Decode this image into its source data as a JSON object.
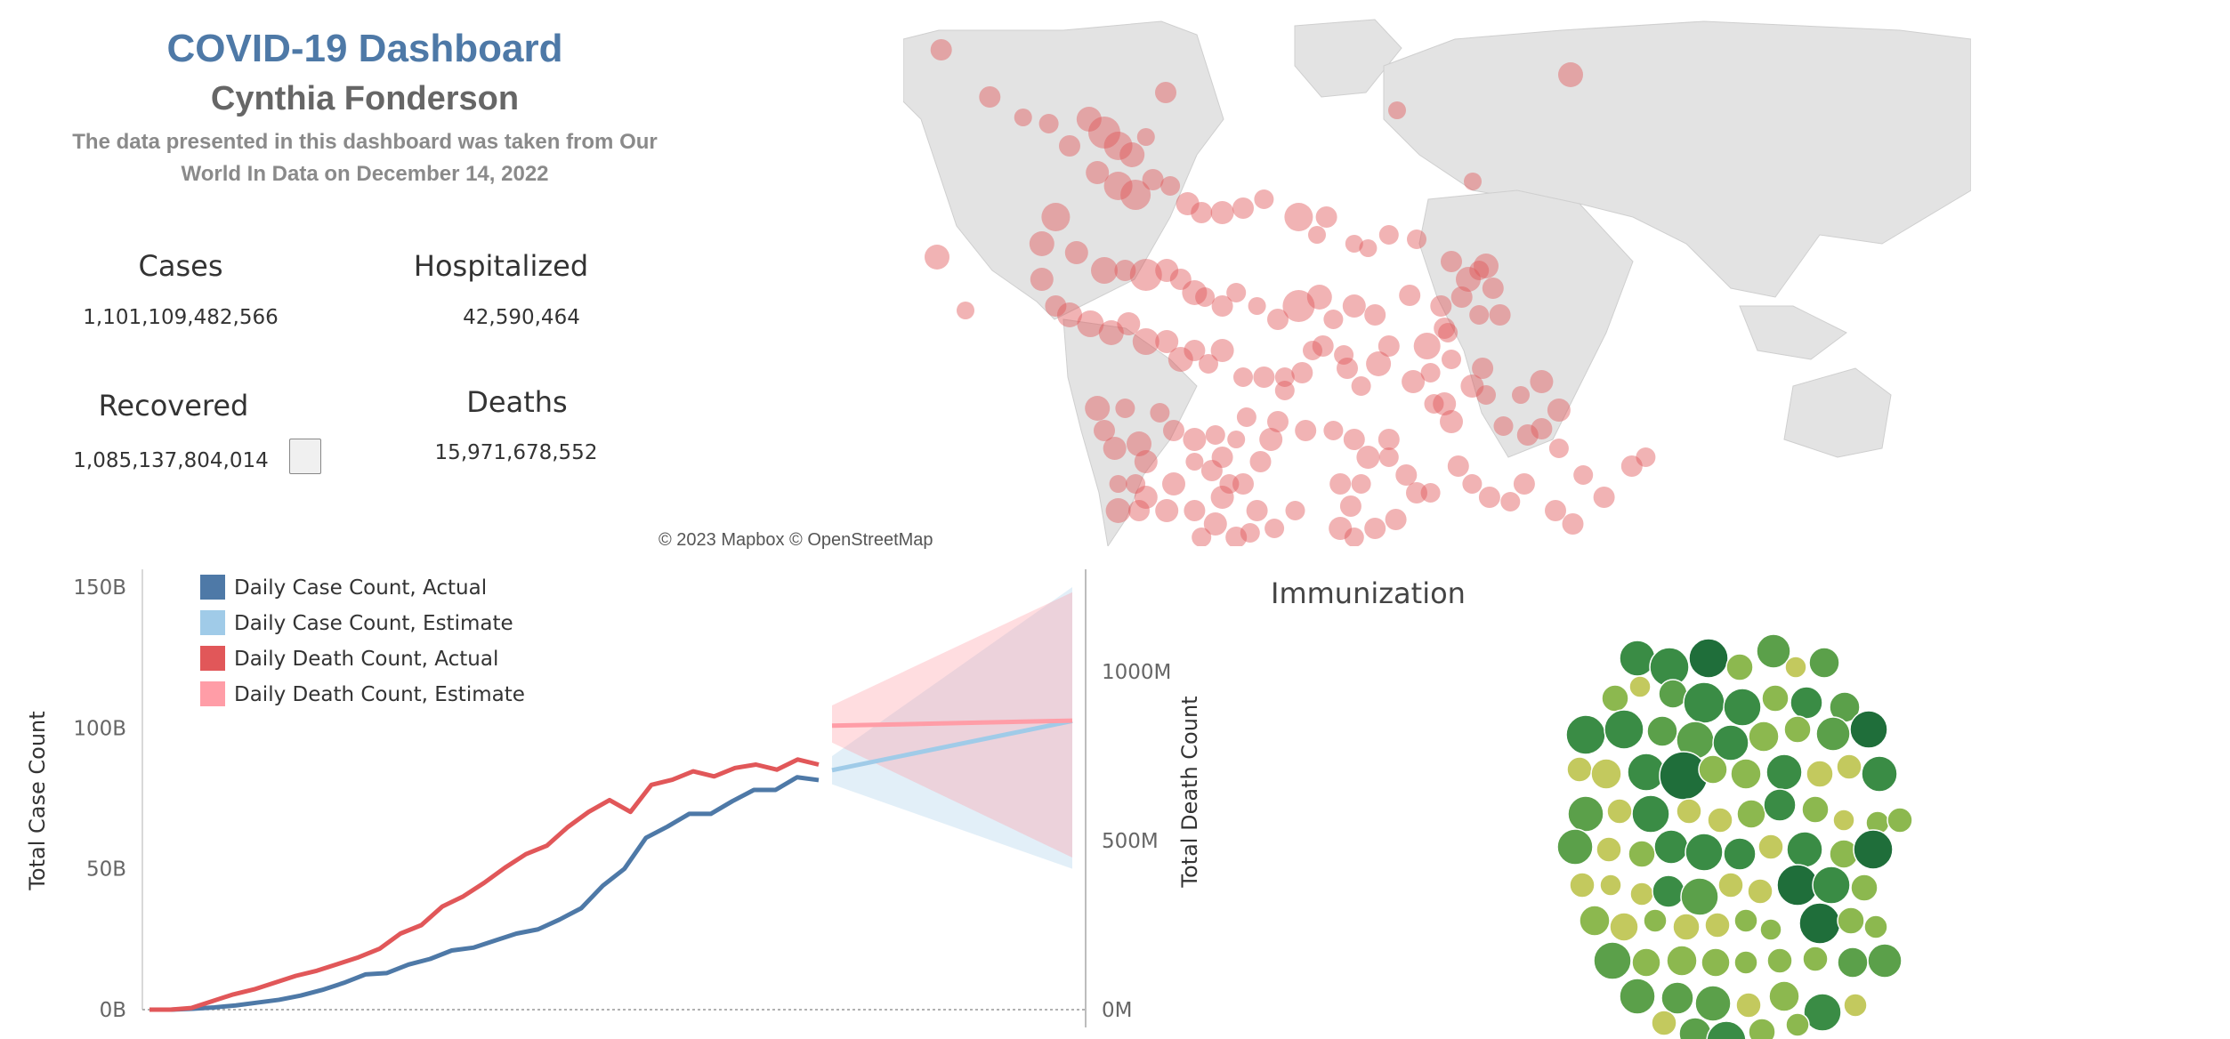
{
  "header": {
    "title": "COVID-19 Dashboard",
    "author": "Cynthia Fonderson",
    "source_line1": "The data presented in this dashboard was taken from Our",
    "source_line2": "World In Data on December 14, 2022"
  },
  "kpis": {
    "cases": {
      "label": "Cases",
      "value": "1,101,109,482,566"
    },
    "hospitalized": {
      "label": "Hospitalized",
      "value": "42,590,464"
    },
    "recovered": {
      "label": "Recovered",
      "value": "1,085,137,804,014"
    },
    "deaths": {
      "label": "Deaths",
      "value": "15,971,678,552"
    }
  },
  "map": {
    "attribution": "© 2023 Mapbox © OpenStreetMap",
    "bubble_color": "#e15759"
  },
  "immunization": {
    "title": "Immunization",
    "colors": [
      "#1f6e3a",
      "#3a8c45",
      "#5ba04a",
      "#8cb84f",
      "#c3c95e"
    ]
  },
  "chart_data": {
    "type": "line",
    "y_left_label": "Total Case Count",
    "y_right_label": "Total Death Count",
    "y_left_ticks": [
      "0B",
      "50B",
      "100B",
      "150B"
    ],
    "y_right_ticks": [
      "0M",
      "500M",
      "1000M"
    ],
    "y_left_range": [
      0,
      150
    ],
    "y_right_range": [
      0,
      1250
    ],
    "legend": [
      {
        "name": "Daily Case Count, Actual",
        "color": "#4e79a7"
      },
      {
        "name": "Daily Case Count, Estimate",
        "color": "#a0cbe8"
      },
      {
        "name": "Daily Death Count, Actual",
        "color": "#e15759"
      },
      {
        "name": "Daily Death Count, Estimate",
        "color": "#ff9da7"
      }
    ],
    "x_count": 36,
    "case_actual_B": [
      0,
      0,
      0.3,
      0.8,
      1.5,
      2.5,
      3.5,
      5,
      7,
      9.5,
      12.5,
      13,
      16,
      18,
      21,
      22,
      24.5,
      27,
      28.5,
      32,
      36,
      44,
      50,
      61,
      65,
      69.5,
      69.5,
      74,
      78,
      78,
      82.5,
      81.5
    ],
    "death_actual_M": [
      0,
      0,
      5,
      25,
      45,
      60,
      80,
      100,
      115,
      135,
      155,
      180,
      225,
      250,
      305,
      335,
      375,
      420,
      460,
      485,
      540,
      585,
      620,
      585,
      665,
      680,
      705,
      690,
      715,
      725,
      710,
      740,
      725
    ],
    "case_estimate_B": [
      85,
      102.5
    ],
    "case_estimate_band_B": [
      [
        80,
        90
      ],
      [
        50,
        150
      ]
    ],
    "death_estimate_M": [
      840,
      855
    ],
    "death_estimate_band_M": [
      [
        790,
        900
      ],
      [
        450,
        1235
      ]
    ]
  }
}
